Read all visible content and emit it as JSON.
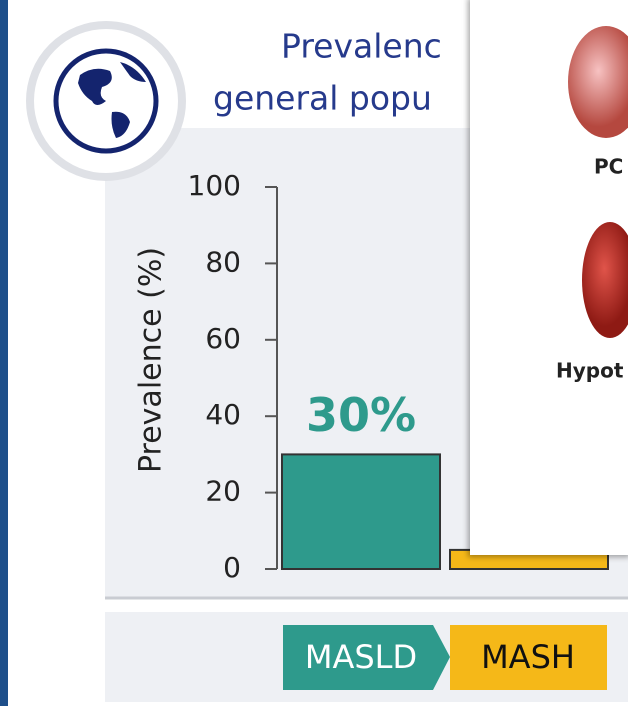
{
  "chart_data": {
    "type": "bar",
    "title_lines": [
      "Prevalenc",
      "general popu"
    ],
    "y_label": "Prevalence (%)",
    "categories": [
      "MASLD",
      "MASH"
    ],
    "values": [
      30,
      5
    ],
    "value_labels": [
      "30%",
      null
    ],
    "colors": [
      "#2e9a8c",
      "#f5b818"
    ],
    "ylim": [
      0,
      100
    ],
    "yticks": [
      0,
      20,
      40,
      60,
      80,
      100
    ]
  },
  "overlay": {
    "labels": [
      "PC",
      "Hypot"
    ]
  }
}
